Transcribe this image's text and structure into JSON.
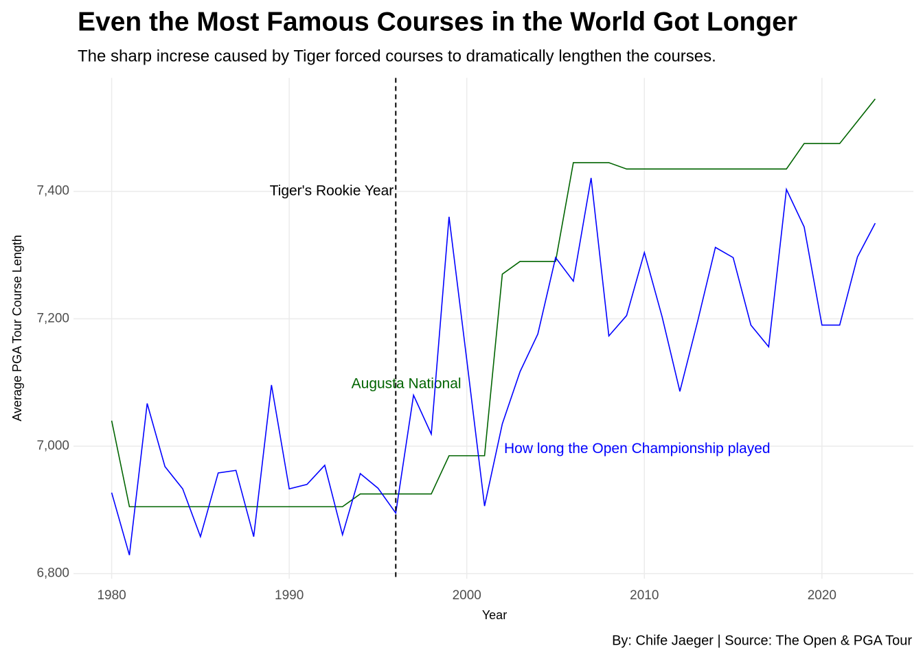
{
  "chart_data": {
    "type": "line",
    "title": "Even the Most Famous Courses in the World Got Longer",
    "subtitle": "The sharp increse caused by Tiger forced courses to dramatically lengthen the courses.",
    "x_label": "Year",
    "y_label": "Average PGA Tour Course Length",
    "caption": "By: Chife Jaeger | Source: The Open & PGA Tour",
    "x": [
      1980,
      1981,
      1982,
      1983,
      1984,
      1985,
      1986,
      1987,
      1988,
      1989,
      1990,
      1991,
      1992,
      1993,
      1994,
      1995,
      1996,
      1997,
      1998,
      1999,
      2000,
      2001,
      2002,
      2003,
      2004,
      2005,
      2006,
      2007,
      2008,
      2009,
      2010,
      2011,
      2012,
      2013,
      2014,
      2015,
      2016,
      2017,
      2018,
      2019,
      2020,
      2021,
      2022,
      2023
    ],
    "series": [
      {
        "name": "Augusta National",
        "color": "#006400",
        "label_x": 1993.5,
        "label_y": 7097,
        "values": [
          7040,
          6905,
          6905,
          6905,
          6905,
          6905,
          6905,
          6905,
          6905,
          6905,
          6905,
          6905,
          6905,
          6905,
          6925,
          6925,
          6925,
          6925,
          6925,
          6985,
          6985,
          6985,
          7270,
          7290,
          7290,
          7290,
          7445,
          7445,
          7445,
          7435,
          7435,
          7435,
          7435,
          7435,
          7435,
          7435,
          7435,
          7435,
          7435,
          7475,
          7475,
          7475,
          7510,
          7545
        ]
      },
      {
        "name": "How long the Open Championship played",
        "color": "#0000ff",
        "label_x": 2002.1,
        "label_y": 6995,
        "values": [
          6927,
          6829,
          7067,
          6968,
          6933,
          6858,
          6958,
          6962,
          6858,
          7096,
          6933,
          6940,
          6970,
          6861,
          6957,
          6934,
          6895,
          7080,
          7019,
          7360,
          7135,
          6906,
          7035,
          7117,
          7176,
          7296,
          7259,
          7421,
          7173,
          7205,
          7304,
          7203,
          7086,
          7196,
          7312,
          7296,
          7190,
          7156,
          7403,
          7344,
          7190,
          7190,
          7297,
          7350
        ]
      }
    ],
    "vline": {
      "x": 1996,
      "label": "Tiger's Rookie Year",
      "label_y": 7400
    },
    "xlim": [
      1977.85,
      2025.15
    ],
    "ylim": [
      6792,
      7578
    ],
    "xticks": [
      1980,
      1990,
      2000,
      2010,
      2020
    ],
    "yticks": [
      {
        "value": 6800,
        "label": "6,800"
      },
      {
        "value": 7000,
        "label": "7,000"
      },
      {
        "value": 7200,
        "label": "7,200"
      },
      {
        "value": 7400,
        "label": "7,400"
      }
    ],
    "grid": true
  }
}
